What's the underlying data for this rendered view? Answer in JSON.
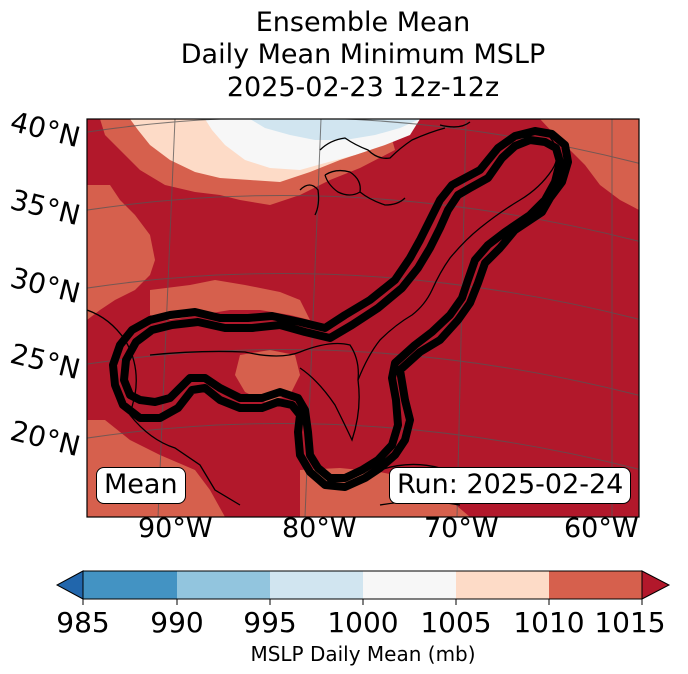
{
  "title": {
    "line1": "Ensemble Mean",
    "line2": "Daily Mean Minimum MSLP",
    "line3": "2025-02-23 12z-12z"
  },
  "map": {
    "lat_labels": [
      "40°N",
      "35°N",
      "30°N",
      "25°N",
      "20°N"
    ],
    "lon_labels": [
      "90°W",
      "80°W",
      "70°W",
      "60°W"
    ],
    "mean_label": "Mean",
    "run_label": "Run: 2025-02-24",
    "contour_color": "#000000",
    "colors": {
      "c1010_1015": "#b2182b",
      "c1005_1010": "#d6604d",
      "c1000_1005": "#fddbc7",
      "c995_1000": "#f7f7f7",
      "c990_995": "#d1e5f0"
    }
  },
  "colorbar": {
    "ticks": [
      "985",
      "990",
      "995",
      "1000",
      "1005",
      "1010",
      "1015"
    ],
    "label": "MSLP Daily Mean (mb)",
    "colors": [
      "#4393c3",
      "#92c5de",
      "#d1e5f0",
      "#f7f7f7",
      "#fddbc7",
      "#d6604d"
    ],
    "under_color": "#2166ac",
    "over_color": "#b2182b"
  }
}
